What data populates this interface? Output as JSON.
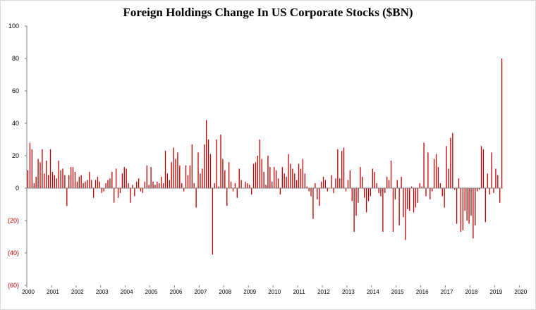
{
  "colors": {
    "bar": "#c00000",
    "negative_label": "#c00000",
    "positive_label": "#000000",
    "axis": "#7f7f7f"
  },
  "chart_data": {
    "type": "bar",
    "title": "Foreign Holdings Change In US Corporate Stocks ($BN)",
    "xlabel": "",
    "ylabel": "",
    "ylim": [
      -60,
      100
    ],
    "yticks": [
      {
        "value": 100,
        "label": "100"
      },
      {
        "value": 80,
        "label": "80"
      },
      {
        "value": 60,
        "label": "60"
      },
      {
        "value": 40,
        "label": "40"
      },
      {
        "value": 20,
        "label": "20"
      },
      {
        "value": 0,
        "label": "0"
      },
      {
        "value": -20,
        "label": "(20)"
      },
      {
        "value": -40,
        "label": "(40)"
      },
      {
        "value": -60,
        "label": "(60)"
      }
    ],
    "xticks": [
      "2000",
      "2001",
      "2002",
      "2003",
      "2004",
      "2005",
      "2006",
      "2007",
      "2008",
      "2009",
      "2010",
      "2011",
      "2012",
      "2013",
      "2014",
      "2015",
      "2016",
      "2017",
      "2018",
      "2019",
      "2020"
    ],
    "frequency": "monthly, Jan 2000 – Mar 2020",
    "grid": false,
    "legend": "none",
    "values": [
      11,
      28,
      24,
      3,
      7,
      18,
      16,
      24,
      9,
      17,
      8,
      24,
      10,
      8,
      6,
      17,
      11,
      12,
      8,
      -11,
      8,
      13,
      13,
      10,
      4,
      7,
      8,
      3,
      4,
      5,
      10,
      5,
      -6,
      5,
      7,
      4,
      -3,
      -2,
      3,
      5,
      6,
      10,
      -9,
      12,
      -6,
      -3,
      9,
      13,
      12,
      3,
      -9,
      2,
      -5,
      4,
      6,
      -2,
      -3,
      4,
      14,
      2,
      13,
      4,
      2,
      4,
      3,
      7,
      3,
      23,
      9,
      5,
      16,
      25,
      18,
      22,
      14,
      3,
      -2,
      14,
      8,
      14,
      27,
      3,
      -12,
      22,
      9,
      12,
      27,
      42,
      30,
      21,
      -41,
      3,
      30,
      1,
      33,
      18,
      11,
      -11,
      16,
      4,
      -2,
      3,
      -6,
      12,
      5,
      0,
      4,
      3,
      2,
      -4,
      15,
      16,
      20,
      30,
      18,
      10,
      2,
      20,
      13,
      4,
      13,
      11,
      6,
      -4,
      13,
      9,
      7,
      21,
      15,
      12,
      9,
      5,
      15,
      12,
      18,
      9,
      1,
      -2,
      -5,
      -19,
      3,
      -7,
      -11,
      4,
      7,
      5,
      -2,
      0,
      8,
      -3,
      6,
      24,
      6,
      23,
      25,
      -2,
      5,
      11,
      -8,
      -27,
      -17,
      -9,
      13,
      7,
      -6,
      -15,
      -8,
      -5,
      12,
      10,
      3,
      -3,
      -5,
      -27,
      -3,
      7,
      5,
      17,
      -27,
      -7,
      5,
      -23,
      7,
      -18,
      -32,
      -13,
      -14,
      1,
      -15,
      -12,
      -9,
      3,
      1,
      28,
      -5,
      22,
      -7,
      -2,
      18,
      21,
      13,
      3,
      -5,
      -12,
      26,
      12,
      31,
      34,
      -1,
      -22,
      6,
      -27,
      -26,
      -14,
      -20,
      -22,
      -17,
      -31,
      -23,
      -2,
      -1,
      26,
      24,
      -21,
      9,
      -4,
      22,
      -3,
      12,
      8,
      -9,
      80
    ]
  }
}
